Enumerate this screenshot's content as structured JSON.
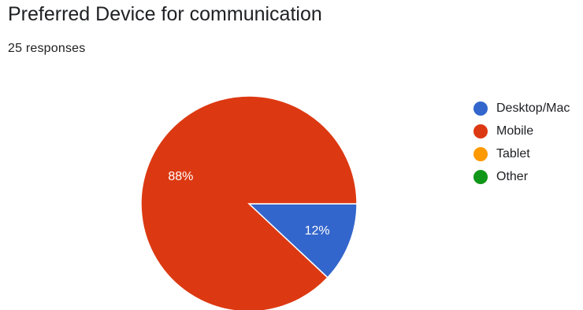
{
  "title": "Preferred Device for communication",
  "subtitle": "25 responses",
  "chart_data": {
    "type": "pie",
    "categories": [
      "Desktop/Mac",
      "Mobile",
      "Tablet",
      "Other"
    ],
    "values": [
      12,
      88,
      0,
      0
    ],
    "colors": [
      "#3366cc",
      "#dc3912",
      "#ff9900",
      "#109618"
    ],
    "labels": [
      "12%",
      "88%",
      "",
      ""
    ],
    "legend_position": "right"
  }
}
